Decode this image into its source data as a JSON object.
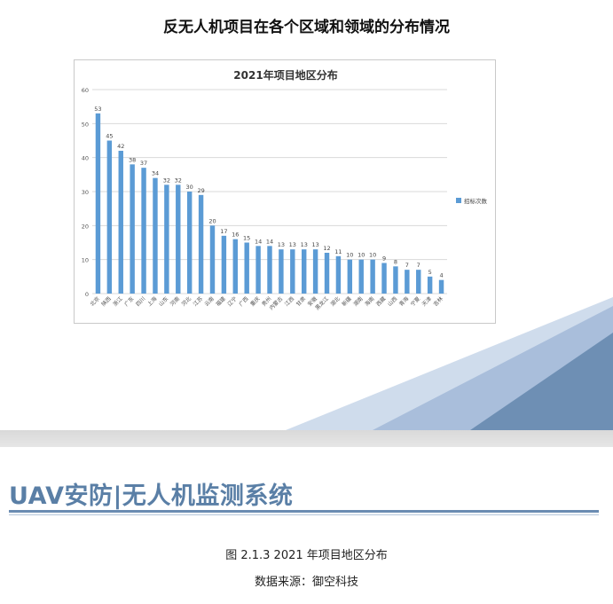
{
  "page_title": "反无人机项目在各个区域和领域的分布情况",
  "brand": {
    "text": "UAV安防|无人机监测系统"
  },
  "caption": {
    "figure": "图 2.1.3 2021 年项目地区分布",
    "source": "数据来源：御空科技"
  },
  "colors": {
    "bar": "#5b9bd5",
    "accent": "#5a7fa6",
    "deco_dark": "#6e8fb4",
    "deco_light": "#a9bedb"
  },
  "chart_data": {
    "type": "bar",
    "title": "2021年项目地区分布",
    "xlabel": "",
    "ylabel": "",
    "ylim": [
      0,
      60
    ],
    "yticks": [
      0,
      10,
      20,
      30,
      40,
      50,
      60
    ],
    "grid": true,
    "legend_position": "right",
    "categories": [
      "北京",
      "陕西",
      "浙江",
      "广东",
      "四川",
      "上海",
      "山东",
      "河南",
      "河北",
      "江苏",
      "云南",
      "福建",
      "辽宁",
      "广西",
      "重庆",
      "贵州",
      "内蒙古",
      "江西",
      "甘肃",
      "安徽",
      "黑龙江",
      "湖北",
      "新疆",
      "湖南",
      "海南",
      "西藏",
      "山西",
      "青海",
      "宁夏",
      "天津",
      "吉林"
    ],
    "series": [
      {
        "name": "招标次数",
        "values": [
          53,
          45,
          42,
          38,
          37,
          34,
          32,
          32,
          30,
          29,
          20,
          17,
          16,
          15,
          14,
          14,
          13,
          13,
          13,
          13,
          12,
          11,
          10,
          10,
          10,
          9,
          8,
          7,
          7,
          5,
          4
        ]
      }
    ]
  }
}
